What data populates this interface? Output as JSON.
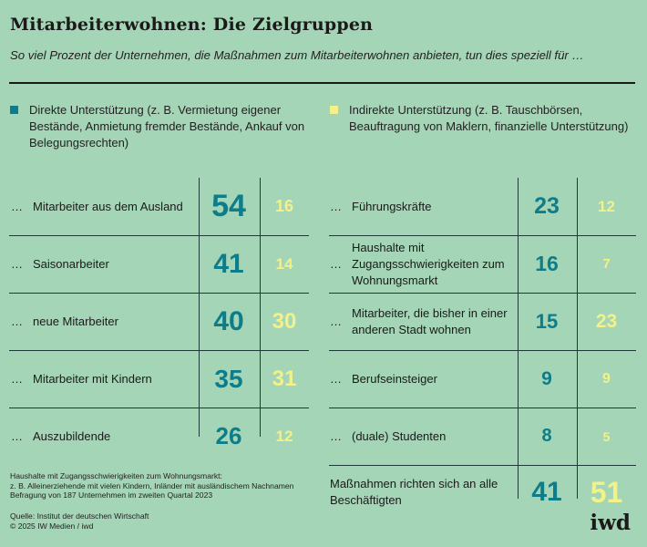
{
  "title": "Mitarbeiterwohnen: Die Zielgruppen",
  "subtitle": "So viel Prozent der Unternehmen, die Maßnahmen zum Mitarbeiterwohnen anbieten, tun dies speziell für …",
  "legend": {
    "direct": "Direkte Unterstützung (z. B. Vermietung eigener Bestände, Anmietung fremder Bestände, Ankauf von Belegungsrechten)",
    "indirect": "Indirekte Unterstützung (z. B. Tauschbörsen, Beauftragung von Maklern, finanzielle Unterstützung)"
  },
  "colors": {
    "background": "#a4d5b6",
    "direct": "#0d7d8a",
    "indirect": "#f3f18a",
    "lines": "#1e3a36"
  },
  "row_prefix": "…",
  "notes": [
    "Haushalte mit Zugangsschwierigkeiten zum Wohnungsmarkt:",
    "z. B. Alleinerziehende mit vielen Kindern, Inländer mit ausländischem Nachnamen",
    "Befragung von 187 Unternehmen im zweiten Quartal 2023"
  ],
  "source": [
    "Quelle: Institut der deutschen Wirtschaft",
    "© 2025 IW Medien / iwd"
  ],
  "logo": "iwd",
  "chart_data": {
    "type": "table",
    "title": "Mitarbeiterwohnen: Die Zielgruppen",
    "unit": "Prozent",
    "series": [
      {
        "name": "Direkte Unterstützung",
        "color": "#0d7d8a"
      },
      {
        "name": "Indirekte Unterstützung",
        "color": "#f3f18a"
      }
    ],
    "left_rows": [
      {
        "label": "Mitarbeiter aus dem Ausland",
        "direct": 54,
        "indirect": 16
      },
      {
        "label": "Saisonarbeiter",
        "direct": 41,
        "indirect": 14
      },
      {
        "label": "neue Mitarbeiter",
        "direct": 40,
        "indirect": 30
      },
      {
        "label": "Mitarbeiter mit Kindern",
        "direct": 35,
        "indirect": 31
      },
      {
        "label": "Auszubildende",
        "direct": 26,
        "indirect": 12
      }
    ],
    "right_rows": [
      {
        "label": "Führungskräfte",
        "direct": 23,
        "indirect": 12
      },
      {
        "label": "Haushalte mit Zugangsschwierigkeiten zum Wohnungsmarkt",
        "direct": 16,
        "indirect": 7
      },
      {
        "label": "Mitarbeiter, die bisher in einer anderen Stadt wohnen",
        "direct": 15,
        "indirect": 23
      },
      {
        "label": "Berufseinsteiger",
        "direct": 9,
        "indirect": 9
      },
      {
        "label": "(duale) Studenten",
        "direct": 8,
        "indirect": 5
      }
    ],
    "total": {
      "label": "Maßnahmen richten sich an alle Beschäftigten",
      "direct": 41,
      "indirect": 51
    }
  }
}
